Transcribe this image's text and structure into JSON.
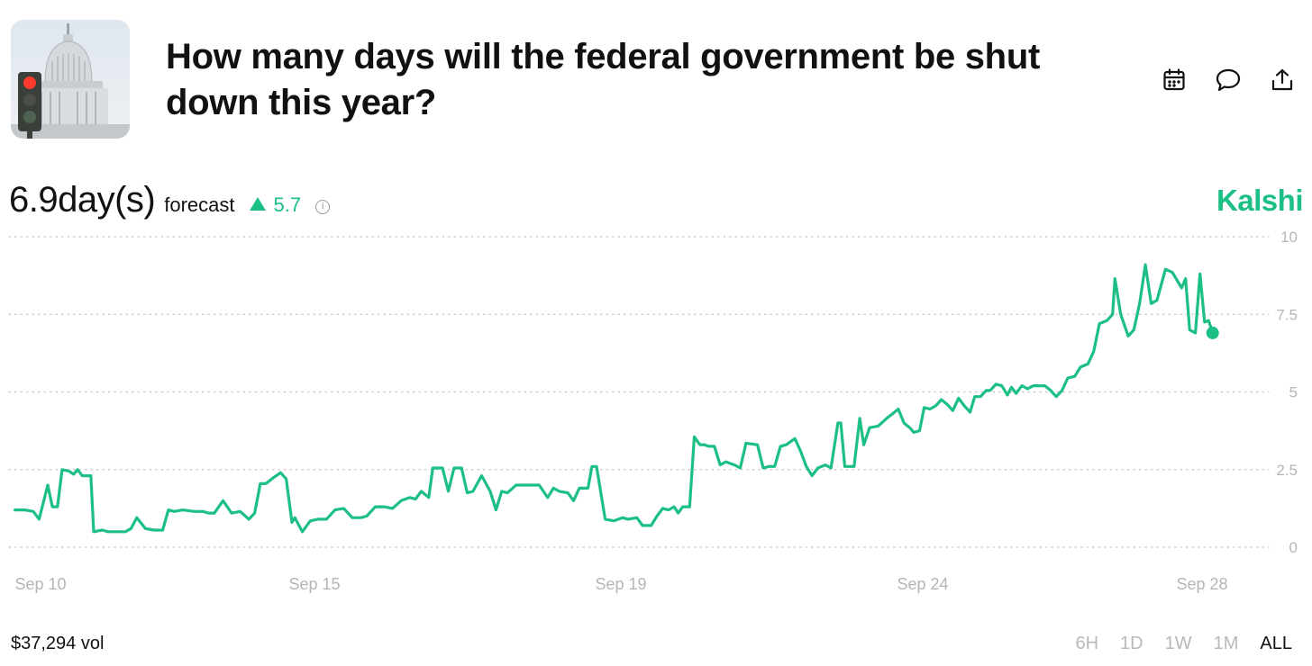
{
  "market": {
    "title": "How many days will the federal government be shut down this year?"
  },
  "actions": [
    "calendar-icon",
    "comment-icon",
    "share-icon"
  ],
  "forecast": {
    "value": "6.9day(s)",
    "label": "forecast",
    "change": "5.7",
    "change_direction": "up"
  },
  "brand": {
    "name": "Kalshi",
    "color": "#1cbf84"
  },
  "volume": "$37,294 vol",
  "time_ranges": {
    "items": [
      "6H",
      "1D",
      "1W",
      "1M",
      "ALL"
    ],
    "selected": "ALL"
  },
  "chart_data": {
    "type": "line",
    "ylim": [
      0,
      10
    ],
    "y_ticks": [
      "0",
      "2.5",
      "5",
      "7.5",
      "10"
    ],
    "y_tick_values": [
      0,
      2.5,
      5,
      7.5,
      10
    ],
    "x_ticks": [
      "Sep 10",
      "Sep 15",
      "Sep 19",
      "Sep 24",
      "Sep 28"
    ],
    "x_tick_values": [
      10,
      14.5,
      19.5,
      24.5,
      29
    ],
    "grid": true,
    "series": [
      {
        "color": "#1cbf84",
        "points": [
          [
            9.18,
            1.2
          ],
          [
            9.35,
            1.2
          ],
          [
            9.5,
            1.15
          ],
          [
            9.6,
            0.9
          ],
          [
            9.75,
            2.0
          ],
          [
            9.83,
            1.3
          ],
          [
            9.92,
            1.3
          ],
          [
            10.0,
            2.5
          ],
          [
            10.12,
            2.45
          ],
          [
            10.2,
            2.35
          ],
          [
            10.27,
            2.5
          ],
          [
            10.35,
            2.3
          ],
          [
            10.5,
            2.3
          ],
          [
            10.55,
            0.5
          ],
          [
            10.7,
            0.55
          ],
          [
            10.8,
            0.5
          ],
          [
            11.0,
            0.5
          ],
          [
            11.1,
            0.5
          ],
          [
            11.2,
            0.6
          ],
          [
            11.3,
            0.95
          ],
          [
            11.45,
            0.6
          ],
          [
            11.6,
            0.55
          ],
          [
            11.75,
            0.55
          ],
          [
            11.85,
            1.2
          ],
          [
            11.95,
            1.15
          ],
          [
            12.1,
            1.2
          ],
          [
            12.3,
            1.15
          ],
          [
            12.45,
            1.15
          ],
          [
            12.55,
            1.1
          ],
          [
            12.65,
            1.1
          ],
          [
            12.8,
            1.5
          ],
          [
            12.95,
            1.1
          ],
          [
            13.1,
            1.15
          ],
          [
            13.25,
            0.9
          ],
          [
            13.35,
            1.1
          ],
          [
            13.45,
            2.05
          ],
          [
            13.55,
            2.05
          ],
          [
            13.65,
            2.2
          ],
          [
            13.8,
            2.4
          ],
          [
            13.9,
            2.2
          ],
          [
            14.0,
            0.8
          ],
          [
            14.05,
            0.95
          ],
          [
            14.18,
            0.5
          ],
          [
            14.32,
            0.85
          ],
          [
            14.45,
            0.9
          ],
          [
            14.6,
            0.9
          ],
          [
            14.75,
            1.2
          ],
          [
            14.9,
            1.25
          ],
          [
            15.05,
            0.95
          ],
          [
            15.2,
            0.95
          ],
          [
            15.3,
            1.0
          ],
          [
            15.45,
            1.3
          ],
          [
            15.6,
            1.3
          ],
          [
            15.75,
            1.25
          ],
          [
            15.9,
            1.5
          ],
          [
            16.05,
            1.6
          ],
          [
            16.15,
            1.55
          ],
          [
            16.25,
            1.8
          ],
          [
            16.38,
            1.6
          ],
          [
            16.45,
            2.55
          ],
          [
            16.62,
            2.55
          ],
          [
            16.72,
            1.8
          ],
          [
            16.82,
            2.55
          ],
          [
            16.95,
            2.55
          ],
          [
            17.05,
            1.75
          ],
          [
            17.15,
            1.8
          ],
          [
            17.3,
            2.3
          ],
          [
            17.45,
            1.8
          ],
          [
            17.55,
            1.2
          ],
          [
            17.65,
            1.8
          ],
          [
            17.75,
            1.75
          ],
          [
            17.9,
            2.0
          ],
          [
            18.1,
            2.0
          ],
          [
            18.3,
            2.0
          ],
          [
            18.45,
            1.6
          ],
          [
            18.55,
            1.9
          ],
          [
            18.65,
            1.8
          ],
          [
            18.8,
            1.75
          ],
          [
            18.9,
            1.5
          ],
          [
            19.0,
            1.9
          ],
          [
            19.15,
            1.9
          ],
          [
            19.22,
            2.6
          ],
          [
            19.3,
            2.6
          ],
          [
            19.45,
            0.9
          ],
          [
            19.6,
            0.85
          ],
          [
            19.75,
            0.95
          ],
          [
            19.85,
            0.9
          ],
          [
            20.0,
            0.95
          ],
          [
            20.1,
            0.7
          ],
          [
            20.25,
            0.7
          ],
          [
            20.35,
            1.0
          ],
          [
            20.45,
            1.25
          ],
          [
            20.55,
            1.2
          ],
          [
            20.65,
            1.3
          ],
          [
            20.72,
            1.1
          ],
          [
            20.8,
            1.3
          ],
          [
            20.92,
            1.3
          ],
          [
            21.0,
            3.55
          ],
          [
            21.1,
            3.3
          ],
          [
            21.18,
            3.3
          ],
          [
            21.25,
            3.25
          ],
          [
            21.35,
            3.25
          ],
          [
            21.45,
            2.65
          ],
          [
            21.55,
            2.75
          ],
          [
            21.7,
            2.65
          ],
          [
            21.8,
            2.55
          ],
          [
            21.9,
            3.35
          ],
          [
            22.1,
            3.3
          ],
          [
            22.2,
            2.55
          ],
          [
            22.3,
            2.6
          ],
          [
            22.4,
            2.6
          ],
          [
            22.5,
            3.25
          ],
          [
            22.6,
            3.3
          ],
          [
            22.75,
            3.5
          ],
          [
            22.85,
            3.1
          ],
          [
            22.95,
            2.6
          ],
          [
            23.05,
            2.3
          ],
          [
            23.15,
            2.55
          ],
          [
            23.28,
            2.65
          ],
          [
            23.38,
            2.55
          ],
          [
            23.5,
            4.0
          ],
          [
            23.55,
            4.0
          ],
          [
            23.62,
            2.6
          ],
          [
            23.78,
            2.6
          ],
          [
            23.88,
            4.15
          ],
          [
            23.95,
            3.3
          ],
          [
            24.05,
            3.85
          ],
          [
            24.2,
            3.9
          ],
          [
            24.35,
            4.15
          ],
          [
            24.45,
            4.3
          ],
          [
            24.55,
            4.45
          ],
          [
            24.65,
            4.0
          ],
          [
            24.75,
            3.85
          ],
          [
            24.82,
            3.7
          ],
          [
            24.92,
            3.75
          ],
          [
            25.0,
            4.5
          ],
          [
            25.1,
            4.45
          ],
          [
            25.2,
            4.55
          ],
          [
            25.3,
            4.75
          ],
          [
            25.4,
            4.6
          ],
          [
            25.5,
            4.4
          ],
          [
            25.6,
            4.8
          ],
          [
            25.7,
            4.55
          ],
          [
            25.8,
            4.35
          ],
          [
            25.88,
            4.85
          ],
          [
            25.98,
            4.85
          ],
          [
            26.08,
            5.05
          ],
          [
            26.15,
            5.05
          ],
          [
            26.25,
            5.25
          ],
          [
            26.35,
            5.2
          ],
          [
            26.45,
            4.9
          ],
          [
            26.52,
            5.15
          ],
          [
            26.6,
            4.95
          ],
          [
            26.7,
            5.2
          ],
          [
            26.8,
            5.1
          ],
          [
            26.9,
            5.2
          ],
          [
            27.1,
            5.2
          ],
          [
            27.2,
            5.05
          ],
          [
            27.3,
            4.85
          ],
          [
            27.4,
            5.05
          ],
          [
            27.5,
            5.45
          ],
          [
            27.62,
            5.5
          ],
          [
            27.72,
            5.8
          ],
          [
            27.85,
            5.9
          ],
          [
            27.95,
            6.3
          ],
          [
            28.05,
            7.2
          ],
          [
            28.18,
            7.3
          ],
          [
            28.28,
            7.5
          ],
          [
            28.32,
            8.65
          ],
          [
            28.42,
            7.5
          ],
          [
            28.55,
            6.8
          ],
          [
            28.65,
            7.0
          ],
          [
            28.75,
            7.85
          ],
          [
            28.85,
            9.1
          ],
          [
            28.95,
            7.85
          ],
          [
            29.05,
            7.95
          ],
          [
            29.2,
            8.95
          ],
          [
            29.32,
            8.85
          ],
          [
            29.48,
            8.35
          ],
          [
            29.55,
            8.65
          ],
          [
            29.62,
            7.0
          ],
          [
            29.72,
            6.9
          ],
          [
            29.8,
            8.8
          ],
          [
            29.88,
            7.25
          ],
          [
            29.95,
            7.3
          ],
          [
            30.02,
            6.9
          ]
        ]
      }
    ]
  }
}
